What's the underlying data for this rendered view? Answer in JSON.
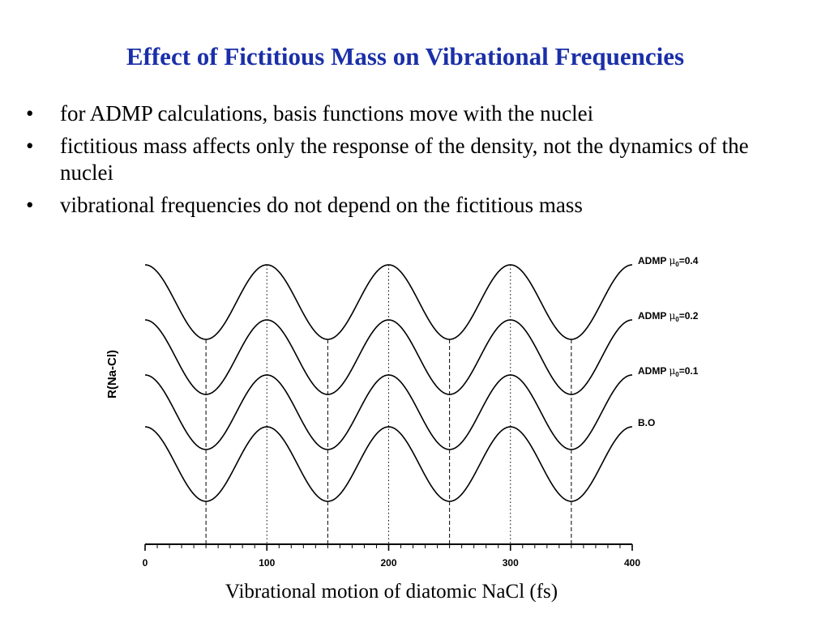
{
  "slide": {
    "title": "Effect of Fictitious Mass on Vibrational Frequencies",
    "bullets": [
      "for ADMP calculations, basis functions move with the nuclei",
      "fictitious mass affects only the response of the density, not the dynamics of the nuclei",
      "vibrational frequencies do not depend on the fictitious mass"
    ]
  },
  "chart_data": {
    "type": "line",
    "xlabel": "Vibrational motion  of diatomic NaCl (fs)",
    "ylabel": "R(Na-Cl)",
    "xlim": [
      0,
      400
    ],
    "xticks": [
      0,
      100,
      200,
      300,
      400
    ],
    "period_fs": 100,
    "maxima_fs": [
      100,
      200,
      300
    ],
    "minima_fs": [
      50,
      150,
      250,
      350
    ],
    "y_ticks_shown": false,
    "series": [
      {
        "name": "ADMP",
        "subscript": "0",
        "mu": "=0.4",
        "phase_fs": 0
      },
      {
        "name": "ADMP",
        "subscript": "0",
        "mu": "=0.2",
        "phase_fs": 0
      },
      {
        "name": "ADMP",
        "subscript": "0",
        "mu": "=0.1",
        "phase_fs": 0
      },
      {
        "name": "B.O",
        "subscript": "",
        "mu": "",
        "phase_fs": 0
      }
    ],
    "mu_symbol": "μ",
    "grid": "dotted lines at maxima, dashed lines at minima",
    "line_color": "#000000"
  }
}
